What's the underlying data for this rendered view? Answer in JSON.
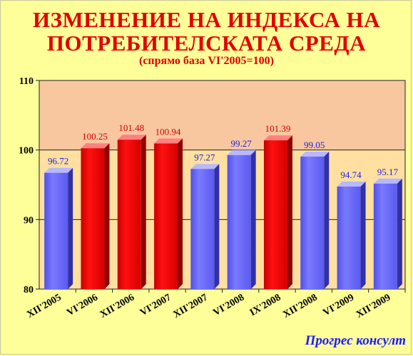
{
  "header": {
    "title_line1": "ИЗМЕНЕНИЕ НА ИНДЕКСА НА",
    "title_line2": "ПОТРЕБИТЕЛСКАТА СРЕДА",
    "subtitle": "(спрямо база VI'2005=100)"
  },
  "footer": {
    "brand": "Прогрес консулт"
  },
  "colors": {
    "background": "#ffff99",
    "upper_band": "#f8c7a0",
    "lower_band": "#ffe0a0",
    "bar_blue": "#7070ff",
    "bar_red": "#e60000",
    "label_blue": "#2020e0",
    "label_red": "#d00000"
  },
  "chart_data": {
    "type": "bar",
    "categories": [
      "XII'2005",
      "VI'2006",
      "XII'2006",
      "VI'2007",
      "XII'2007",
      "VI'2008",
      "IX'2008",
      "XII'2008",
      "VI'2009",
      "XII'2009"
    ],
    "values": [
      96.72,
      100.25,
      101.48,
      100.94,
      97.27,
      99.27,
      101.39,
      99.05,
      94.74,
      95.17
    ],
    "value_labels": [
      "96.72",
      "100.25",
      "101.48",
      "100.94",
      "97.27",
      "99.27",
      "101.39",
      "99.05",
      "94.74",
      "95.17"
    ],
    "bar_colors": [
      "blue",
      "red",
      "red",
      "red",
      "blue",
      "blue",
      "red",
      "blue",
      "blue",
      "blue"
    ],
    "yticks": [
      "80",
      "90",
      "100",
      "110"
    ],
    "ylim": [
      80,
      110
    ],
    "reference_line": 100,
    "grid": true,
    "legend": "none"
  }
}
